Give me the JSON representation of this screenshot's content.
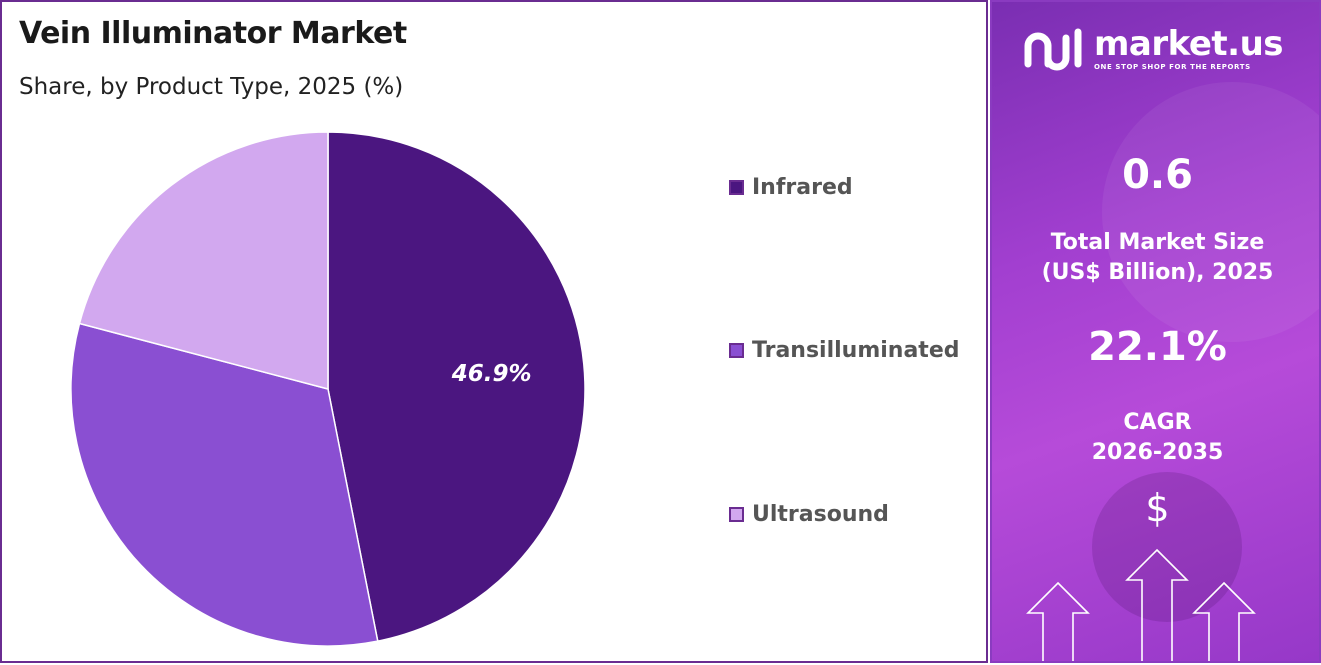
{
  "header": {
    "title": "Vein Illuminator Market",
    "subtitle": "Share, by Product Type, 2025 (%)"
  },
  "chart_data": {
    "type": "pie",
    "title": "Vein Illuminator Market",
    "subtitle": "Share, by Product Type, 2025 (%)",
    "categories": [
      "Infrared",
      "Transilluminated",
      "Ultrasound"
    ],
    "values": [
      46.9,
      32.2,
      20.9
    ],
    "colors": [
      "#4b1680",
      "#8a4fd2",
      "#d2a8ef"
    ],
    "data_labels": [
      "46.9%",
      "",
      ""
    ],
    "legend_position": "right"
  },
  "brand": {
    "name": "market.us",
    "tagline": "ONE STOP SHOP FOR THE REPORTS",
    "logo_icon": "market-us-logo-icon"
  },
  "stats": {
    "market_size_value": "0.6",
    "market_size_label_line1": "Total Market Size",
    "market_size_label_line2": "(US$ Billion), 2025",
    "cagr_value": "22.1%",
    "cagr_label_line1": "CAGR",
    "cagr_label_line2": "2026-2035",
    "currency_symbol": "$"
  },
  "colors": {
    "accent": "#6a2c91",
    "panel_gradient_start": "#7a2eb2",
    "panel_gradient_end": "#b64bd9"
  }
}
